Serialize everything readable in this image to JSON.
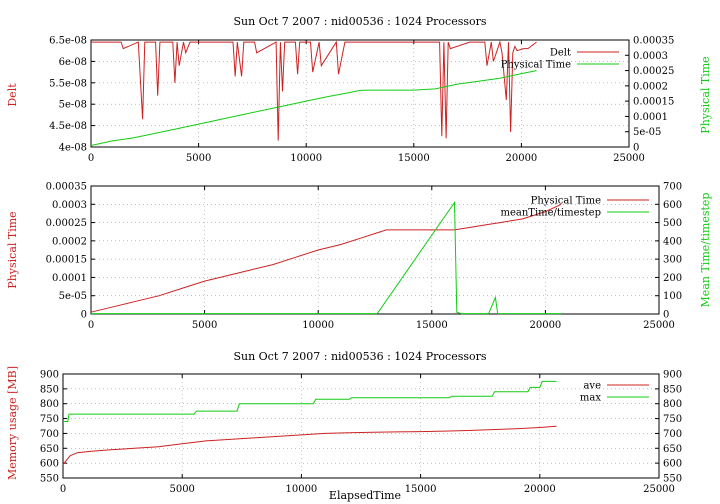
{
  "chart_data": [
    {
      "type": "line",
      "title": "Sun Oct 7 2007 : nid00536 : 1024 Processors",
      "xlim": [
        0,
        25000
      ],
      "x_ticks": [
        "0",
        "5000",
        "10000",
        "15000",
        "20000",
        "25000"
      ],
      "y_left": {
        "label": "Delt",
        "lim": [
          4e-08,
          6.5e-08
        ],
        "color": "#cc2222",
        "ticks": [
          "4e-08",
          "4.5e-08",
          "5e-08",
          "5.5e-08",
          "6e-08",
          "6.5e-08"
        ]
      },
      "y_right": {
        "label": "Physical Time",
        "lim": [
          0,
          0.00035
        ],
        "color": "#11cc11",
        "ticks": [
          "0",
          "5e-05",
          "0.0001",
          "0.00015",
          "0.0002",
          "0.00025",
          "0.0003",
          "0.00035"
        ]
      },
      "grid": true,
      "legend": "top-right",
      "series": [
        {
          "name": "Delt",
          "axis": "left",
          "color": "#cc2222",
          "x": [
            0,
            1000,
            1400,
            1500,
            2200,
            2400,
            2500,
            2600,
            3000,
            3100,
            3200,
            3300,
            3800,
            3900,
            4000,
            4100,
            4300,
            4400,
            4600,
            4700,
            5500,
            6000,
            6600,
            6700,
            6800,
            7000,
            7100,
            7600,
            7700,
            8600,
            8700,
            8800,
            8900,
            9000,
            9500,
            9600,
            9700,
            9800,
            10200,
            10300,
            10600,
            10700,
            11400,
            11500,
            11800,
            11900,
            12000,
            12100,
            16200,
            16300,
            16400,
            16500,
            16600,
            16700,
            17600,
            17700,
            17800,
            18300,
            18400,
            18600,
            18700,
            19000,
            19100,
            19300,
            19400,
            19500,
            19600,
            19700,
            19800,
            20100,
            20300,
            20700
          ],
          "y": [
            6.45e-08,
            6.45e-08,
            6.45e-08,
            6.3e-08,
            6.45e-08,
            4.65e-08,
            6.45e-08,
            6.45e-08,
            6.45e-08,
            5.2e-08,
            6.45e-08,
            6.45e-08,
            6.45e-08,
            5.5e-08,
            6.45e-08,
            5.9e-08,
            6.45e-08,
            6.2e-08,
            6.45e-08,
            6.45e-08,
            6.45e-08,
            6.45e-08,
            6.45e-08,
            5.65e-08,
            6.45e-08,
            5.65e-08,
            6.45e-08,
            6.45e-08,
            6.2e-08,
            6.45e-08,
            4.15e-08,
            6.45e-08,
            5.3e-08,
            6.45e-08,
            6.45e-08,
            5.7e-08,
            6.45e-08,
            6.45e-08,
            6.45e-08,
            5.75e-08,
            6.45e-08,
            5.9e-08,
            6.45e-08,
            5.7e-08,
            6.45e-08,
            6.45e-08,
            6.45e-08,
            6.45e-08,
            6.45e-08,
            4.25e-08,
            6.45e-08,
            4.2e-08,
            6.45e-08,
            6.3e-08,
            6.45e-08,
            6.45e-08,
            6.45e-08,
            6.45e-08,
            5.9e-08,
            6.45e-08,
            6e-08,
            6.45e-08,
            6.2e-08,
            5.1e-08,
            6.45e-08,
            4.35e-08,
            6.2e-08,
            6.35e-08,
            6.25e-08,
            6.3e-08,
            6.3e-08,
            6.45e-08
          ]
        },
        {
          "name": "Physical Time",
          "axis": "right",
          "color": "#11cc11",
          "x": [
            0,
            1000,
            2000,
            3000,
            4000,
            5000,
            6000,
            7000,
            8000,
            9000,
            10000,
            11000,
            12000,
            12500,
            13000,
            14000,
            15000,
            16000,
            17000,
            17500,
            18000,
            19000,
            20000,
            20700
          ],
          "y": [
            5e-06,
            2e-05,
            3e-05,
            4.5e-05,
            6e-05,
            7.5e-05,
            9e-05,
            0.000105,
            0.00012,
            0.000135,
            0.00015,
            0.000165,
            0.000178,
            0.000185,
            0.000186,
            0.000186,
            0.000186,
            0.00019,
            0.000205,
            0.00021,
            0.000215,
            0.000225,
            0.00024,
            0.00025
          ]
        }
      ]
    },
    {
      "type": "line",
      "title": "",
      "xlim": [
        0,
        25000
      ],
      "x_ticks": [
        "0",
        "5000",
        "10000",
        "15000",
        "20000",
        "25000"
      ],
      "y_left": {
        "label": "Physical Time",
        "lim": [
          0,
          0.00035
        ],
        "color": "#cc2222",
        "ticks": [
          "0",
          "5e-05",
          "0.0001",
          "0.00015",
          "0.0002",
          "0.00025",
          "0.0003",
          "0.00035"
        ]
      },
      "y_right": {
        "label": "Mean Time/timestep",
        "lim": [
          0,
          700
        ],
        "color": "#11cc11",
        "ticks": [
          "0",
          "100",
          "200",
          "300",
          "400",
          "500",
          "600",
          "700"
        ]
      },
      "grid": true,
      "legend": "top-right",
      "series": [
        {
          "name": "Physical Time",
          "axis": "left",
          "color": "#cc2222",
          "x": [
            0,
            1000,
            2000,
            3000,
            4000,
            5000,
            6000,
            7000,
            8000,
            9000,
            10000,
            11000,
            12000,
            12500,
            13000,
            14000,
            15000,
            16000,
            17000,
            17500,
            18000,
            19000,
            20000,
            20700
          ],
          "y": [
            5e-06,
            2e-05,
            3.5e-05,
            5e-05,
            7e-05,
            9e-05,
            0.000105,
            0.00012,
            0.000135,
            0.000155,
            0.000175,
            0.00019,
            0.00021,
            0.00022,
            0.00023,
            0.00023,
            0.00023,
            0.00023,
            0.00024,
            0.000245,
            0.00025,
            0.00026,
            0.00028,
            0.0003
          ]
        },
        {
          "name": "meanTime/timestep",
          "axis": "right",
          "color": "#11cc11",
          "x": [
            0,
            12600,
            16000,
            16100,
            16300,
            17500,
            17800,
            17900,
            18000,
            20700
          ],
          "y": [
            2,
            2,
            610,
            10,
            2,
            2,
            90,
            2,
            2,
            2
          ]
        }
      ]
    },
    {
      "type": "line",
      "title": "Sun Oct 7 2007 : nid00536 : 1024 Processors",
      "xlabel": "ElapsedTime",
      "xlim": [
        0,
        25000
      ],
      "x_ticks": [
        "0",
        "5000",
        "10000",
        "15000",
        "20000",
        "25000"
      ],
      "y_left": {
        "label": "Memory usage [MB]",
        "lim": [
          550,
          900
        ],
        "color": "#cc2222",
        "ticks": [
          "550",
          "600",
          "650",
          "700",
          "750",
          "800",
          "850",
          "900"
        ]
      },
      "y_right": {
        "label": "",
        "lim": [
          550,
          900
        ],
        "color": "#000000",
        "ticks": [
          "550",
          "600",
          "650",
          "700",
          "750",
          "800",
          "850",
          "900"
        ]
      },
      "grid": true,
      "legend": "top-right",
      "series": [
        {
          "name": "ave",
          "axis": "left",
          "color": "#cc2222",
          "x": [
            0,
            300,
            600,
            1200,
            2000,
            3000,
            4000,
            5000,
            6000,
            7000,
            8000,
            9000,
            10000,
            11000,
            12000,
            13000,
            14000,
            15000,
            16000,
            17000,
            18000,
            19000,
            20000,
            20700
          ],
          "y": [
            595,
            625,
            635,
            640,
            645,
            650,
            655,
            665,
            675,
            680,
            685,
            690,
            695,
            700,
            702,
            704,
            705,
            706,
            708,
            710,
            713,
            716,
            720,
            724
          ]
        },
        {
          "name": "max",
          "axis": "left",
          "color": "#11cc11",
          "x": [
            0,
            200,
            250,
            5500,
            5600,
            7300,
            7400,
            10500,
            10600,
            12000,
            12100,
            16200,
            16300,
            18000,
            18100,
            19500,
            19600,
            20000,
            20100,
            20700
          ],
          "y": [
            740,
            740,
            765,
            765,
            775,
            775,
            800,
            800,
            815,
            815,
            820,
            820,
            825,
            825,
            840,
            840,
            855,
            855,
            875,
            875
          ]
        }
      ]
    }
  ]
}
